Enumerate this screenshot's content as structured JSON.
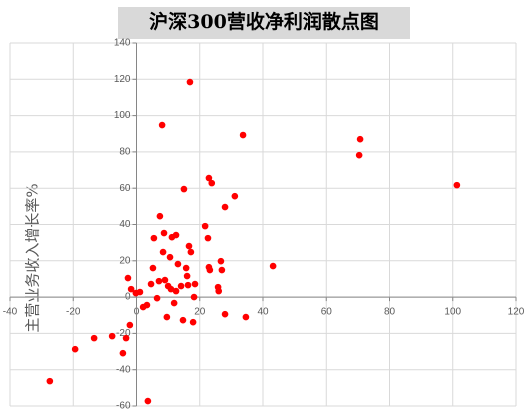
{
  "chart_data": {
    "type": "scatter",
    "title": "沪深300营收净利润散点图",
    "ylabel": "主营业务收入增长率%",
    "x": [
      -27.4,
      -19.4,
      -13.4,
      -7.7,
      -4.3,
      -3.3,
      -2.1,
      -2.7,
      -1.7,
      -0.2,
      1.1,
      2.1,
      3.3,
      3.6,
      4.6,
      5.2,
      5.5,
      6.5,
      7.1,
      7.4,
      8.1,
      8.4,
      8.7,
      9,
      9.6,
      10,
      10.6,
      10.9,
      11.2,
      11.9,
      12.5,
      12.5,
      13.1,
      14.1,
      14.7,
      15,
      15.7,
      16,
      16.3,
      16.6,
      16.9,
      17.2,
      17.9,
      18.2,
      18.5,
      21.7,
      22.6,
      22.9,
      22.9,
      23.2,
      23.8,
      25.8,
      26,
      26.7,
      27,
      28,
      28,
      31.1,
      33.7,
      34.6,
      43.2,
      70.4,
      70.7,
      101.3
    ],
    "values": [
      -46.3,
      -28.7,
      -22.6,
      -21.5,
      -30.9,
      -22.6,
      -15.4,
      10.5,
      4.4,
      2.2,
      2.8,
      -5.5,
      -4.4,
      -57.3,
      7.2,
      16,
      32.5,
      -0.6,
      8.8,
      44.6,
      94.8,
      24.8,
      35.3,
      9.4,
      -11,
      6.1,
      22,
      4.4,
      33,
      -3.3,
      34.2,
      3.3,
      18.2,
      6.1,
      -12.7,
      59.5,
      16,
      11.6,
      6.6,
      28.1,
      118.5,
      24.8,
      -13.8,
      0,
      7.2,
      39.1,
      32.5,
      65.6,
      16.5,
      14.9,
      62.8,
      5.5,
      3.3,
      19.8,
      14.9,
      49.6,
      -9.4,
      55.6,
      89.3,
      -11,
      17.1,
      78.2,
      87,
      61.7
    ],
    "color": "#ff0000",
    "xlim": [
      -40,
      120
    ],
    "xticks": [
      -40,
      -20,
      0,
      20,
      40,
      60,
      80,
      100,
      120
    ],
    "ylim": [
      -60,
      140
    ],
    "yticks": [
      -60,
      -40,
      -20,
      0,
      20,
      40,
      60,
      80,
      100,
      120,
      140
    ],
    "grid": true
  }
}
